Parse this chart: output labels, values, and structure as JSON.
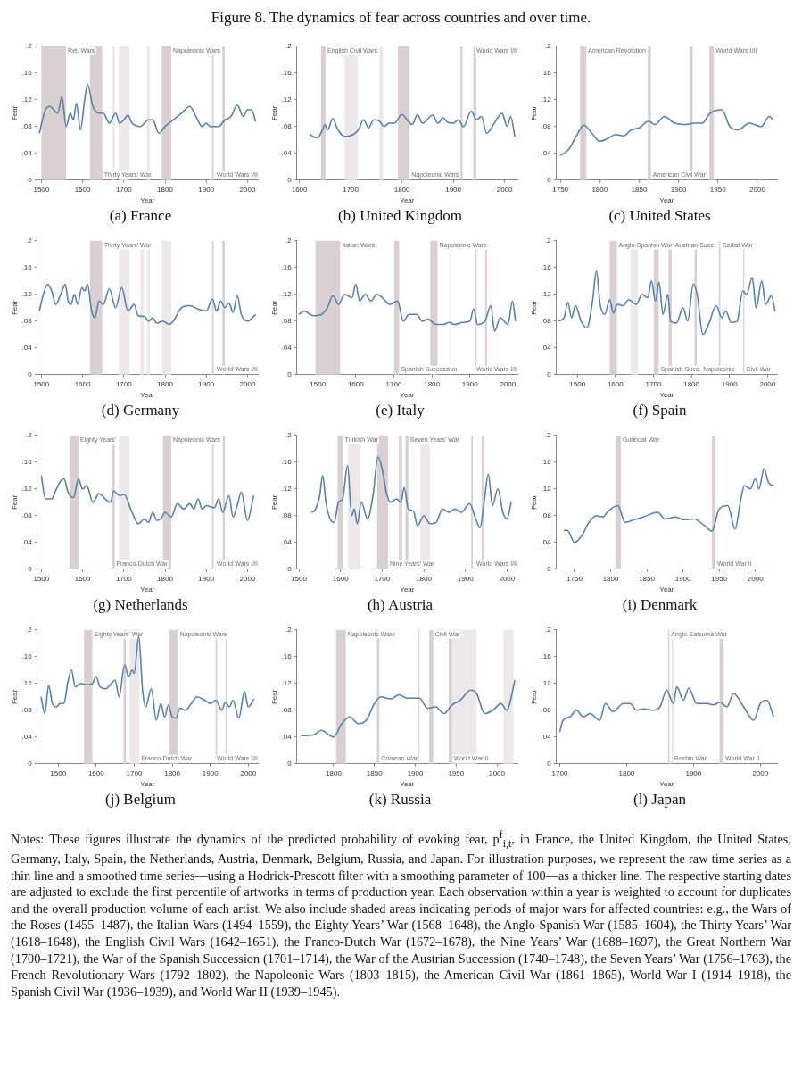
{
  "chart_data": [
    {
      "type": "other",
      "title": "Figure 8. The dynamics of fear across countries and over time."
    },
    {
      "type": "line",
      "title": "(a) France",
      "xlabel": "Year",
      "ylabel": "Fear",
      "grid": false,
      "xlim": [
        1490,
        2025
      ],
      "xticks": [
        1500,
        1600,
        1700,
        1800,
        1900,
        2000
      ],
      "ylim": [
        0,
        0.2
      ],
      "yticks": [
        {
          "value": 0,
          "label": "0"
        },
        {
          "value": 0.04,
          "label": ".04"
        },
        {
          "value": 0.08,
          "label": ".08"
        },
        {
          "value": 0.12,
          "label": ".12"
        },
        {
          "value": 0.16,
          "label": ".16"
        },
        {
          "value": 0.2,
          "label": ".2"
        }
      ],
      "x": [
        1495,
        1510,
        1520,
        1540,
        1550,
        1560,
        1570,
        1578,
        1585,
        1595,
        1605,
        1612,
        1625,
        1640,
        1650,
        1665,
        1680,
        1690,
        1700,
        1710,
        1720,
        1740,
        1760,
        1770,
        1785,
        1800,
        1820,
        1840,
        1860,
        1875,
        1890,
        1900,
        1910,
        1930,
        1945,
        1960,
        1975,
        1990,
        2000,
        2010,
        2020
      ],
      "series": [
        {
          "color": "#5b7fa6",
          "values": [
            0.07,
            0.105,
            0.11,
            0.1,
            0.125,
            0.08,
            0.1,
            0.09,
            0.115,
            0.075,
            0.12,
            0.143,
            0.11,
            0.1,
            0.1,
            0.085,
            0.1,
            0.085,
            0.09,
            0.097,
            0.085,
            0.08,
            0.09,
            0.09,
            0.07,
            0.08,
            0.09,
            0.1,
            0.11,
            0.095,
            0.08,
            0.085,
            0.08,
            0.08,
            0.09,
            0.095,
            0.112,
            0.095,
            0.105,
            0.105,
            0.087
          ]
        }
      ],
      "bands": [
        {
          "axis": "x",
          "from": 1500,
          "to": 1560,
          "label": "Rel. Wars",
          "color": "#d9d0d2"
        },
        {
          "axis": "x",
          "from": 1618,
          "to": 1648,
          "label": "Thirty Years' War",
          "color": "#d9d0d2"
        },
        {
          "axis": "x",
          "from": 1672,
          "to": 1678,
          "color": "#ede8e9"
        },
        {
          "axis": "x",
          "from": 1688,
          "to": 1714,
          "color": "#ede8e9"
        },
        {
          "axis": "x",
          "from": 1756,
          "to": 1763,
          "color": "#ede8e9"
        },
        {
          "axis": "x",
          "from": 1792,
          "to": 1815,
          "label": "Napoleonic Wars",
          "color": "#d9d0d2"
        },
        {
          "axis": "x",
          "from": 1914,
          "to": 1918,
          "color": "#d9d0d2"
        },
        {
          "axis": "x",
          "from": 1939,
          "to": 1945,
          "label": "World Wars I/II",
          "color": "#d9d0d2"
        }
      ]
    },
    {
      "type": "line",
      "title": "(b) United Kingdom",
      "xlabel": "Year",
      "ylabel": "Fear",
      "grid": false,
      "xlim": [
        1595,
        2025
      ],
      "xticks": [
        1600,
        1700,
        1800,
        1900,
        2000
      ],
      "ylim": [
        0,
        0.2
      ],
      "yticks": [
        {
          "value": 0,
          "label": "0"
        },
        {
          "value": 0.04,
          "label": ".04"
        },
        {
          "value": 0.08,
          "label": ".08"
        },
        {
          "value": 0.12,
          "label": ".12"
        },
        {
          "value": 0.16,
          "label": ".16"
        },
        {
          "value": 0.2,
          "label": ".2"
        }
      ],
      "x": [
        1620,
        1635,
        1645,
        1650,
        1655,
        1665,
        1675,
        1690,
        1705,
        1715,
        1725,
        1735,
        1745,
        1755,
        1765,
        1775,
        1785,
        1800,
        1810,
        1820,
        1830,
        1840,
        1860,
        1870,
        1880,
        1890,
        1900,
        1910,
        1920,
        1935,
        1945,
        1955,
        1965,
        1980,
        1995,
        2005,
        2012,
        2020
      ],
      "series": [
        {
          "color": "#5b7fa6",
          "values": [
            0.068,
            0.063,
            0.075,
            0.083,
            0.075,
            0.092,
            0.075,
            0.065,
            0.068,
            0.075,
            0.09,
            0.078,
            0.09,
            0.089,
            0.08,
            0.085,
            0.085,
            0.098,
            0.09,
            0.083,
            0.098,
            0.085,
            0.097,
            0.085,
            0.093,
            0.086,
            0.085,
            0.09,
            0.08,
            0.103,
            0.09,
            0.095,
            0.07,
            0.085,
            0.1,
            0.08,
            0.095,
            0.065
          ]
        }
      ],
      "bands": [
        {
          "axis": "x",
          "from": 1642,
          "to": 1651,
          "label": "English Civil Wars",
          "color": "#d9d0d2"
        },
        {
          "axis": "x",
          "from": 1688,
          "to": 1714,
          "color": "#ede8e9"
        },
        {
          "axis": "x",
          "from": 1756,
          "to": 1763,
          "color": "#ede8e9"
        },
        {
          "axis": "x",
          "from": 1792,
          "to": 1815,
          "label": "Napoleonic Wars",
          "color": "#d9d0d2"
        },
        {
          "axis": "x",
          "from": 1914,
          "to": 1918,
          "color": "#d9d0d2"
        },
        {
          "axis": "x",
          "from": 1939,
          "to": 1945,
          "label": "World Wars I/II",
          "color": "#d9d0d2"
        }
      ]
    },
    {
      "type": "line",
      "title": "(c) United States",
      "xlabel": "Year",
      "ylabel": "Fear",
      "grid": false,
      "xlim": [
        1745,
        2025
      ],
      "xticks": [
        1750,
        1800,
        1850,
        1900,
        1950,
        2000
      ],
      "ylim": [
        0,
        0.2
      ],
      "yticks": [
        {
          "value": 0,
          "label": "0"
        },
        {
          "value": 0.04,
          "label": ".04"
        },
        {
          "value": 0.08,
          "label": ".08"
        },
        {
          "value": 0.12,
          "label": ".12"
        },
        {
          "value": 0.16,
          "label": ".16"
        },
        {
          "value": 0.2,
          "label": ".2"
        }
      ],
      "x": [
        1750,
        1760,
        1770,
        1780,
        1790,
        1800,
        1810,
        1820,
        1830,
        1840,
        1850,
        1862,
        1870,
        1882,
        1895,
        1910,
        1920,
        1930,
        1940,
        1955,
        1965,
        1975,
        1990,
        2005,
        2015,
        2020
      ],
      "series": [
        {
          "color": "#5b7fa6",
          "values": [
            0.037,
            0.045,
            0.065,
            0.082,
            0.07,
            0.058,
            0.062,
            0.068,
            0.066,
            0.075,
            0.078,
            0.088,
            0.083,
            0.095,
            0.085,
            0.083,
            0.085,
            0.085,
            0.1,
            0.105,
            0.08,
            0.075,
            0.085,
            0.08,
            0.095,
            0.09
          ]
        }
      ],
      "bands": [
        {
          "axis": "x",
          "from": 1775,
          "to": 1783,
          "label": "American Revolution",
          "color": "#d9d0d2"
        },
        {
          "axis": "x",
          "from": 1861,
          "to": 1865,
          "label": "American Civil War",
          "color": "#d9d0d2"
        },
        {
          "axis": "x",
          "from": 1914,
          "to": 1918,
          "color": "#d9d0d2"
        },
        {
          "axis": "x",
          "from": 1939,
          "to": 1945,
          "label": "World Wars I/II",
          "color": "#d9d0d2"
        }
      ]
    },
    {
      "type": "line",
      "title": "(d) Germany",
      "xlabel": "Year",
      "ylabel": "Fear",
      "grid": false,
      "xlim": [
        1490,
        2025
      ],
      "xticks": [
        1500,
        1600,
        1700,
        1800,
        1900,
        2000
      ],
      "ylim": [
        0,
        0.2
      ],
      "yticks": [
        {
          "value": 0,
          "label": "0"
        },
        {
          "value": 0.04,
          "label": ".04"
        },
        {
          "value": 0.08,
          "label": ".08"
        },
        {
          "value": 0.12,
          "label": ".12"
        },
        {
          "value": 0.16,
          "label": ".16"
        },
        {
          "value": 0.2,
          "label": ".2"
        }
      ],
      "x": [
        1495,
        1505,
        1515,
        1525,
        1535,
        1550,
        1558,
        1565,
        1572,
        1580,
        1588,
        1598,
        1605,
        1612,
        1622,
        1630,
        1640,
        1650,
        1665,
        1680,
        1695,
        1710,
        1725,
        1735,
        1750,
        1760,
        1770,
        1780,
        1795,
        1810,
        1820,
        1840,
        1860,
        1880,
        1900,
        1915,
        1925,
        1935,
        1945,
        1955,
        1965,
        1975,
        1985,
        2000,
        2020
      ],
      "series": [
        {
          "color": "#5b7fa6",
          "values": [
            0.095,
            0.12,
            0.135,
            0.125,
            0.105,
            0.125,
            0.135,
            0.11,
            0.105,
            0.12,
            0.105,
            0.13,
            0.125,
            0.135,
            0.095,
            0.085,
            0.11,
            0.105,
            0.128,
            0.1,
            0.13,
            0.095,
            0.105,
            0.088,
            0.087,
            0.08,
            0.085,
            0.077,
            0.08,
            0.075,
            0.08,
            0.1,
            0.103,
            0.098,
            0.095,
            0.113,
            0.095,
            0.11,
            0.1,
            0.107,
            0.093,
            0.118,
            0.09,
            0.08,
            0.09
          ]
        }
      ],
      "bands": [
        {
          "axis": "x",
          "from": 1618,
          "to": 1648,
          "label": "Thirty Years' War",
          "color": "#d9d0d2"
        },
        {
          "axis": "x",
          "from": 1688,
          "to": 1714,
          "color": "#ede8e9"
        },
        {
          "axis": "x",
          "from": 1740,
          "to": 1748,
          "color": "#ede8e9"
        },
        {
          "axis": "x",
          "from": 1756,
          "to": 1763,
          "color": "#ede8e9"
        },
        {
          "axis": "x",
          "from": 1792,
          "to": 1815,
          "color": "#ede8e9"
        },
        {
          "axis": "x",
          "from": 1914,
          "to": 1918,
          "color": "#d9d0d2"
        },
        {
          "axis": "x",
          "from": 1939,
          "to": 1945,
          "label": "World Wars I/II",
          "color": "#d9d0d2"
        }
      ]
    },
    {
      "type": "line",
      "title": "(e) Italy",
      "xlabel": "Year",
      "ylabel": "Fear",
      "grid": false,
      "xlim": [
        1445,
        2025
      ],
      "xticks": [
        1500,
        1600,
        1700,
        1800,
        1900,
        2000
      ],
      "ylim": [
        0,
        0.2
      ],
      "yticks": [
        {
          "value": 0,
          "label": "0"
        },
        {
          "value": 0.04,
          "label": ".04"
        },
        {
          "value": 0.08,
          "label": ".08"
        },
        {
          "value": 0.12,
          "label": ".12"
        },
        {
          "value": 0.16,
          "label": ".16"
        },
        {
          "value": 0.2,
          "label": ".2"
        }
      ],
      "x": [
        1450,
        1465,
        1480,
        1490,
        1510,
        1525,
        1540,
        1555,
        1570,
        1590,
        1600,
        1610,
        1625,
        1640,
        1655,
        1670,
        1690,
        1710,
        1725,
        1740,
        1760,
        1775,
        1790,
        1810,
        1830,
        1845,
        1860,
        1880,
        1900,
        1910,
        1920,
        1940,
        1955,
        1965,
        1980,
        2000,
        2012,
        2020
      ],
      "series": [
        {
          "color": "#5b7fa6",
          "values": [
            0.09,
            0.095,
            0.09,
            0.088,
            0.09,
            0.1,
            0.118,
            0.105,
            0.12,
            0.115,
            0.135,
            0.11,
            0.12,
            0.11,
            0.12,
            0.115,
            0.105,
            0.11,
            0.08,
            0.09,
            0.09,
            0.08,
            0.083,
            0.075,
            0.075,
            0.078,
            0.075,
            0.078,
            0.08,
            0.098,
            0.075,
            0.08,
            0.103,
            0.065,
            0.085,
            0.075,
            0.11,
            0.08
          ]
        }
      ],
      "bands": [
        {
          "axis": "x",
          "from": 1494,
          "to": 1559,
          "label": "Italian Wars",
          "color": "#d9d0d2"
        },
        {
          "axis": "x",
          "from": 1701,
          "to": 1714,
          "label": "Spanish Succession",
          "color": "#d9d0d2"
        },
        {
          "axis": "x",
          "from": 1796,
          "to": 1815,
          "label": "Napoleonic Wars",
          "color": "#d9d0d2"
        },
        {
          "axis": "x",
          "from": 1848,
          "to": 1849,
          "color": "#ede8e9"
        },
        {
          "axis": "x",
          "from": 1915,
          "to": 1918,
          "color": "#d9d0d2"
        },
        {
          "axis": "x",
          "from": 1940,
          "to": 1945,
          "label": "World Wars I/II",
          "color": "#d9d0d2"
        }
      ]
    },
    {
      "type": "line",
      "title": "(f) Spain",
      "xlabel": "Year",
      "ylabel": "Fear",
      "grid": false,
      "xlim": [
        1445,
        2025
      ],
      "xticks": [
        1500,
        1600,
        1700,
        1800,
        1900,
        2000
      ],
      "ylim": [
        0,
        0.2
      ],
      "yticks": [
        {
          "value": 0,
          "label": "0"
        },
        {
          "value": 0.04,
          "label": ".04"
        },
        {
          "value": 0.08,
          "label": ".08"
        },
        {
          "value": 0.12,
          "label": ".12"
        },
        {
          "value": 0.16,
          "label": ".16"
        },
        {
          "value": 0.2,
          "label": ".2"
        }
      ],
      "x": [
        1450,
        1465,
        1475,
        1485,
        1495,
        1510,
        1525,
        1540,
        1550,
        1560,
        1572,
        1585,
        1595,
        1605,
        1620,
        1635,
        1655,
        1670,
        1685,
        1695,
        1705,
        1715,
        1725,
        1738,
        1745,
        1760,
        1778,
        1790,
        1805,
        1815,
        1830,
        1845,
        1865,
        1880,
        1890,
        1905,
        1920,
        1935,
        1945,
        1960,
        1970,
        1985,
        1995,
        2010,
        2020
      ],
      "series": [
        {
          "color": "#5b7fa6",
          "values": [
            0.08,
            0.085,
            0.108,
            0.085,
            0.103,
            0.08,
            0.07,
            0.11,
            0.155,
            0.105,
            0.09,
            0.112,
            0.092,
            0.105,
            0.103,
            0.112,
            0.105,
            0.12,
            0.115,
            0.14,
            0.11,
            0.138,
            0.09,
            0.12,
            0.08,
            0.077,
            0.1,
            0.08,
            0.135,
            0.12,
            0.06,
            0.075,
            0.103,
            0.085,
            0.095,
            0.078,
            0.08,
            0.125,
            0.12,
            0.145,
            0.1,
            0.14,
            0.105,
            0.118,
            0.095
          ]
        }
      ],
      "bands": [
        {
          "axis": "x",
          "from": 1585,
          "to": 1604,
          "label": "Anglo-Spanish War",
          "color": "#d9d0d2"
        },
        {
          "axis": "x",
          "from": 1640,
          "to": 1659,
          "color": "#ede8e9"
        },
        {
          "axis": "x",
          "from": 1701,
          "to": 1714,
          "label": "Spanish Succ.",
          "color": "#d9d0d2"
        },
        {
          "axis": "x",
          "from": 1740,
          "to": 1748,
          "label": "Austrian Succ.",
          "color": "#d9d0d2"
        },
        {
          "axis": "x",
          "from": 1808,
          "to": 1814,
          "label": "Napoleonic",
          "color": "#d9d0d2"
        },
        {
          "axis": "x",
          "from": 1872,
          "to": 1876,
          "label": "Carlist War",
          "color": "#d9d0d2"
        },
        {
          "axis": "x",
          "from": 1936,
          "to": 1939,
          "label": "Civil War",
          "color": "#d9d0d2"
        }
      ]
    },
    {
      "type": "line",
      "title": "(g) Netherlands",
      "xlabel": "Year",
      "ylabel": "Fear",
      "grid": false,
      "xlim": [
        1490,
        2025
      ],
      "xticks": [
        1500,
        1600,
        1700,
        1800,
        1900,
        2000
      ],
      "ylim": [
        0,
        0.2
      ],
      "yticks": [
        {
          "value": 0,
          "label": "0"
        },
        {
          "value": 0.04,
          "label": ".04"
        },
        {
          "value": 0.08,
          "label": ".08"
        },
        {
          "value": 0.12,
          "label": ".12"
        },
        {
          "value": 0.16,
          "label": ".16"
        },
        {
          "value": 0.2,
          "label": ".2"
        }
      ],
      "x": [
        1500,
        1510,
        1525,
        1535,
        1545,
        1555,
        1565,
        1578,
        1590,
        1600,
        1610,
        1625,
        1640,
        1655,
        1668,
        1675,
        1690,
        1700,
        1720,
        1735,
        1750,
        1760,
        1770,
        1780,
        1790,
        1800,
        1815,
        1830,
        1845,
        1860,
        1870,
        1880,
        1890,
        1900,
        1920,
        1930,
        1940,
        1955,
        1965,
        1975,
        1985,
        2000,
        2015
      ],
      "series": [
        {
          "color": "#5b7fa6",
          "values": [
            0.14,
            0.105,
            0.105,
            0.118,
            0.13,
            0.135,
            0.115,
            0.107,
            0.135,
            0.12,
            0.125,
            0.1,
            0.113,
            0.105,
            0.1,
            0.117,
            0.11,
            0.112,
            0.085,
            0.068,
            0.075,
            0.07,
            0.085,
            0.073,
            0.075,
            0.085,
            0.078,
            0.098,
            0.09,
            0.098,
            0.09,
            0.105,
            0.09,
            0.095,
            0.092,
            0.105,
            0.085,
            0.11,
            0.078,
            0.095,
            0.115,
            0.073,
            0.11
          ]
        }
      ],
      "bands": [
        {
          "axis": "x",
          "from": 1568,
          "to": 1590,
          "label": "Eighty Years'",
          "color": "#d9d0d2"
        },
        {
          "axis": "x",
          "from": 1672,
          "to": 1678,
          "label": "Franco-Dutch War",
          "color": "#d9d0d2"
        },
        {
          "axis": "x",
          "from": 1688,
          "to": 1714,
          "color": "#ede8e9"
        },
        {
          "axis": "x",
          "from": 1795,
          "to": 1815,
          "label": "Napoleonic Wars",
          "color": "#d9d0d2"
        },
        {
          "axis": "x",
          "from": 1914,
          "to": 1918,
          "color": "#d9d0d2"
        },
        {
          "axis": "x",
          "from": 1940,
          "to": 1945,
          "label": "World Wars I/II",
          "color": "#d9d0d2"
        }
      ]
    },
    {
      "type": "line",
      "title": "(h) Austria",
      "xlabel": "Year",
      "ylabel": "Fear",
      "grid": false,
      "xlim": [
        1495,
        2025
      ],
      "xticks": [
        1500,
        1600,
        1700,
        1800,
        1900,
        2000
      ],
      "ylim": [
        0,
        0.2
      ],
      "yticks": [
        {
          "value": 0,
          "label": "0"
        },
        {
          "value": 0.04,
          "label": ".04"
        },
        {
          "value": 0.08,
          "label": ".08"
        },
        {
          "value": 0.12,
          "label": ".12"
        },
        {
          "value": 0.16,
          "label": ".16"
        },
        {
          "value": 0.2,
          "label": ".2"
        }
      ],
      "x": [
        1530,
        1540,
        1550,
        1557,
        1565,
        1575,
        1585,
        1595,
        1605,
        1617,
        1627,
        1633,
        1640,
        1650,
        1665,
        1678,
        1690,
        1700,
        1710,
        1720,
        1735,
        1745,
        1753,
        1763,
        1775,
        1785,
        1800,
        1815,
        1830,
        1845,
        1860,
        1875,
        1890,
        1910,
        1925,
        1935,
        1945,
        1955,
        1965,
        1978,
        1990,
        2000,
        2010
      ],
      "series": [
        {
          "color": "#5b7fa6",
          "values": [
            0.085,
            0.09,
            0.11,
            0.14,
            0.1,
            0.075,
            0.07,
            0.1,
            0.105,
            0.155,
            0.08,
            0.09,
            0.068,
            0.1,
            0.075,
            0.11,
            0.168,
            0.15,
            0.115,
            0.1,
            0.105,
            0.1,
            0.122,
            0.09,
            0.087,
            0.065,
            0.08,
            0.068,
            0.07,
            0.09,
            0.085,
            0.09,
            0.085,
            0.098,
            0.075,
            0.062,
            0.1,
            0.142,
            0.095,
            0.12,
            0.085,
            0.075,
            0.1
          ]
        }
      ],
      "bands": [
        {
          "axis": "x",
          "from": 1593,
          "to": 1606,
          "label": "Turkish War",
          "color": "#d9d0d2"
        },
        {
          "axis": "x",
          "from": 1618,
          "to": 1648,
          "color": "#ede8e9"
        },
        {
          "axis": "x",
          "from": 1688,
          "to": 1714,
          "label": "Nine Years' War",
          "color": "#d9d0d2"
        },
        {
          "axis": "x",
          "from": 1740,
          "to": 1748,
          "color": "#d9d0d2"
        },
        {
          "axis": "x",
          "from": 1756,
          "to": 1763,
          "label": "Seven Years' War",
          "color": "#d9d0d2"
        },
        {
          "axis": "x",
          "from": 1792,
          "to": 1815,
          "color": "#ede8e9"
        },
        {
          "axis": "x",
          "from": 1914,
          "to": 1918,
          "color": "#d9d0d2"
        },
        {
          "axis": "x",
          "from": 1939,
          "to": 1945,
          "label": "World Wars I/II",
          "color": "#d9d0d2"
        }
      ]
    },
    {
      "type": "line",
      "title": "(i) Denmark",
      "xlabel": "Year",
      "ylabel": "Fear",
      "grid": false,
      "xlim": [
        1725,
        2030
      ],
      "xticks": [
        1750,
        1800,
        1850,
        1900,
        1950,
        2000
      ],
      "ylim": [
        0,
        0.2
      ],
      "yticks": [
        {
          "value": 0,
          "label": "0"
        },
        {
          "value": 0.04,
          "label": ".04"
        },
        {
          "value": 0.08,
          "label": ".08"
        },
        {
          "value": 0.12,
          "label": ".12"
        },
        {
          "value": 0.16,
          "label": ".16"
        },
        {
          "value": 0.2,
          "label": ".2"
        }
      ],
      "x": [
        1735,
        1740,
        1750,
        1760,
        1770,
        1780,
        1790,
        1795,
        1810,
        1820,
        1830,
        1845,
        1865,
        1875,
        1890,
        1900,
        1915,
        1930,
        1940,
        1950,
        1962,
        1972,
        1980,
        1985,
        1993,
        2000,
        2005,
        2012,
        2018,
        2025
      ],
      "series": [
        {
          "color": "#5b7fa6",
          "values": [
            0.058,
            0.058,
            0.04,
            0.05,
            0.07,
            0.08,
            0.078,
            0.085,
            0.095,
            0.07,
            0.073,
            0.078,
            0.085,
            0.075,
            0.078,
            0.074,
            0.075,
            0.065,
            0.057,
            0.09,
            0.095,
            0.06,
            0.105,
            0.125,
            0.12,
            0.135,
            0.12,
            0.15,
            0.13,
            0.125
          ]
        }
      ],
      "bands": [
        {
          "axis": "x",
          "from": 1807,
          "to": 1814,
          "label": "Gunboat War",
          "color": "#d9d0d2"
        },
        {
          "axis": "x",
          "from": 1940,
          "to": 1945,
          "label": "World War II",
          "color": "#d9d0d2"
        }
      ]
    },
    {
      "type": "line",
      "title": "(j) Belgium",
      "xlabel": "Year",
      "ylabel": "Fear",
      "grid": false,
      "xlim": [
        1445,
        2025
      ],
      "xticks": [
        1500,
        1600,
        1700,
        1800,
        1900,
        2000
      ],
      "ylim": [
        0,
        0.2
      ],
      "yticks": [
        {
          "value": 0,
          "label": "0"
        },
        {
          "value": 0.04,
          "label": ".04"
        },
        {
          "value": 0.08,
          "label": ".08"
        },
        {
          "value": 0.12,
          "label": ".12"
        },
        {
          "value": 0.16,
          "label": ".16"
        },
        {
          "value": 0.2,
          "label": ".2"
        }
      ],
      "x": [
        1455,
        1465,
        1475,
        1485,
        1495,
        1505,
        1515,
        1525,
        1535,
        1545,
        1560,
        1575,
        1590,
        1600,
        1610,
        1625,
        1640,
        1650,
        1660,
        1675,
        1685,
        1695,
        1700,
        1712,
        1722,
        1730,
        1745,
        1758,
        1770,
        1780,
        1790,
        1800,
        1810,
        1820,
        1835,
        1850,
        1865,
        1885,
        1900,
        1915,
        1930,
        1940,
        1950,
        1960,
        1975,
        1990,
        2000,
        2015
      ],
      "series": [
        {
          "color": "#5b7fa6",
          "values": [
            0.1,
            0.075,
            0.117,
            0.09,
            0.085,
            0.09,
            0.09,
            0.12,
            0.14,
            0.115,
            0.12,
            0.118,
            0.12,
            0.13,
            0.115,
            0.112,
            0.12,
            0.125,
            0.1,
            0.148,
            0.13,
            0.14,
            0.135,
            0.19,
            0.11,
            0.085,
            0.112,
            0.065,
            0.09,
            0.07,
            0.088,
            0.07,
            0.068,
            0.083,
            0.08,
            0.09,
            0.1,
            0.095,
            0.09,
            0.095,
            0.08,
            0.092,
            0.085,
            0.095,
            0.068,
            0.108,
            0.085,
            0.097
          ]
        }
      ],
      "bands": [
        {
          "axis": "x",
          "from": 1568,
          "to": 1590,
          "label": "Eighty Years' War",
          "color": "#d9d0d2"
        },
        {
          "axis": "x",
          "from": 1672,
          "to": 1678,
          "color": "#d9d0d2"
        },
        {
          "axis": "x",
          "from": 1688,
          "to": 1714,
          "label": "Franco-Dutch War",
          "color": "#ede8e9"
        },
        {
          "axis": "x",
          "from": 1792,
          "to": 1815,
          "label": "Napoleonic Wars",
          "color": "#d9d0d2"
        },
        {
          "axis": "x",
          "from": 1914,
          "to": 1918,
          "color": "#d9d0d2"
        },
        {
          "axis": "x",
          "from": 1940,
          "to": 1945,
          "label": "World Wars I/II",
          "color": "#d9d0d2"
        }
      ]
    },
    {
      "type": "line",
      "title": "(k) Russia",
      "xlabel": "Year",
      "ylabel": "Fear",
      "grid": false,
      "xlim": [
        1755,
        2025
      ],
      "xticks": [
        1800,
        1850,
        1900,
        1950,
        2000
      ],
      "ylim": [
        0,
        0.2
      ],
      "yticks": [
        {
          "value": 0,
          "label": "0"
        },
        {
          "value": 0.04,
          "label": ".04"
        },
        {
          "value": 0.08,
          "label": ".08"
        },
        {
          "value": 0.12,
          "label": ".12"
        },
        {
          "value": 0.16,
          "label": ".16"
        },
        {
          "value": 0.2,
          "label": ".2"
        }
      ],
      "x": [
        1760,
        1775,
        1785,
        1800,
        1810,
        1820,
        1830,
        1840,
        1850,
        1858,
        1870,
        1880,
        1890,
        1905,
        1915,
        1925,
        1935,
        1945,
        1955,
        1968,
        1975,
        1985,
        1995,
        2005,
        2012,
        2022
      ],
      "series": [
        {
          "color": "#5b7fa6",
          "values": [
            0.042,
            0.043,
            0.05,
            0.04,
            0.06,
            0.07,
            0.06,
            0.065,
            0.09,
            0.1,
            0.097,
            0.103,
            0.098,
            0.098,
            0.083,
            0.085,
            0.075,
            0.088,
            0.095,
            0.11,
            0.105,
            0.075,
            0.08,
            0.09,
            0.08,
            0.125
          ]
        }
      ],
      "bands": [
        {
          "axis": "x",
          "from": 1803,
          "to": 1815,
          "label": "Napoleonic Wars",
          "color": "#d9d0d2"
        },
        {
          "axis": "x",
          "from": 1853,
          "to": 1856,
          "label": "Crimean War",
          "color": "#d9d0d2"
        },
        {
          "axis": "x",
          "from": 1904,
          "to": 1905,
          "color": "#d9d0d2"
        },
        {
          "axis": "x",
          "from": 1917,
          "to": 1922,
          "label": "Civil War",
          "color": "#d9d0d2"
        },
        {
          "axis": "x",
          "from": 1941,
          "to": 1945,
          "label": "World War II",
          "color": "#d9d0d2"
        },
        {
          "axis": "x",
          "from": 1945,
          "to": 1975,
          "color": "#ede8e9"
        },
        {
          "axis": "x",
          "from": 2008,
          "to": 2020,
          "color": "#ede8e9"
        }
      ]
    },
    {
      "type": "line",
      "title": "(l) Japan",
      "xlabel": "Year",
      "ylabel": "Fear",
      "grid": false,
      "xlim": [
        1695,
        2025
      ],
      "xticks": [
        1700,
        1800,
        1900,
        2000
      ],
      "ylim": [
        0,
        0.2
      ],
      "yticks": [
        {
          "value": 0,
          "label": "0"
        },
        {
          "value": 0.04,
          "label": ".04"
        },
        {
          "value": 0.08,
          "label": ".08"
        },
        {
          "value": 0.12,
          "label": ".12"
        },
        {
          "value": 0.16,
          "label": ".16"
        },
        {
          "value": 0.2,
          "label": ".2"
        }
      ],
      "x": [
        1700,
        1705,
        1715,
        1725,
        1735,
        1745,
        1760,
        1768,
        1780,
        1795,
        1805,
        1815,
        1825,
        1840,
        1850,
        1860,
        1870,
        1875,
        1885,
        1893,
        1905,
        1920,
        1930,
        1940,
        1950,
        1960,
        1975,
        1990,
        2000,
        2010,
        2020
      ],
      "series": [
        {
          "color": "#5b7fa6",
          "values": [
            0.048,
            0.065,
            0.07,
            0.08,
            0.07,
            0.075,
            0.065,
            0.09,
            0.078,
            0.09,
            0.09,
            0.08,
            0.082,
            0.08,
            0.085,
            0.11,
            0.09,
            0.115,
            0.095,
            0.113,
            0.09,
            0.09,
            0.088,
            0.092,
            0.085,
            0.105,
            0.085,
            0.065,
            0.09,
            0.095,
            0.07
          ]
        }
      ],
      "bands": [
        {
          "axis": "x",
          "from": 1862,
          "to": 1864,
          "label": "Anglo-Satsuma War",
          "color": "#d9d0d2"
        },
        {
          "axis": "x",
          "from": 1868,
          "to": 1869,
          "label": "Boshin War",
          "color": "#d9d0d2"
        },
        {
          "axis": "x",
          "from": 1939,
          "to": 1945,
          "label": "World War II",
          "color": "#d9d0d2"
        }
      ]
    },
    {
      "type": "other",
      "annotations": [
        "Notes: These figures illustrate the dynamics of the predicted probability of evoking fear, p$^{f}$$_{i,t}$, in France, the United Kingdom, the United States, Germany, Italy, Spain, the Netherlands, Austria, Denmark, Belgium, Russia, and Japan. For illustration purposes, we represent the raw time series as a thin line and a smoothed time series—using a Hodrick-Prescott filter with a smoothing parameter of 100—as a thicker line. The respective starting dates are adjusted to exclude the first percentile of artworks in terms of production year. Each observation within a year is weighted to account for duplicates and the overall production volume of each artist. We also include shaded areas indicating periods of major wars for affected countries: e.g., the Wars of the Roses (1455–1487), the Italian Wars (1494–1559), the Eighty Years’ War (1568–1648), the Anglo-Spanish War (1585–1604), the Thirty Years’ War (1618–1648), the English Civil Wars (1642–1651), the Franco-Dutch War (1672–1678), the Nine Years’ War (1688–1697), the Great Northern War (1700–1721), the War of the Spanish Succession (1701–1714), the War of the Austrian Succession (1740–1748), the Seven Years’ War (1756–1763), the French Revolutionary Wars (1792–1802), the Napoleonic Wars (1803–1815), the American Civil War (1861–1865), World War I (1914–1918), the Spanish Civil War (1936–1939), and World War II (1939–1945)."
      ]
    }
  ]
}
